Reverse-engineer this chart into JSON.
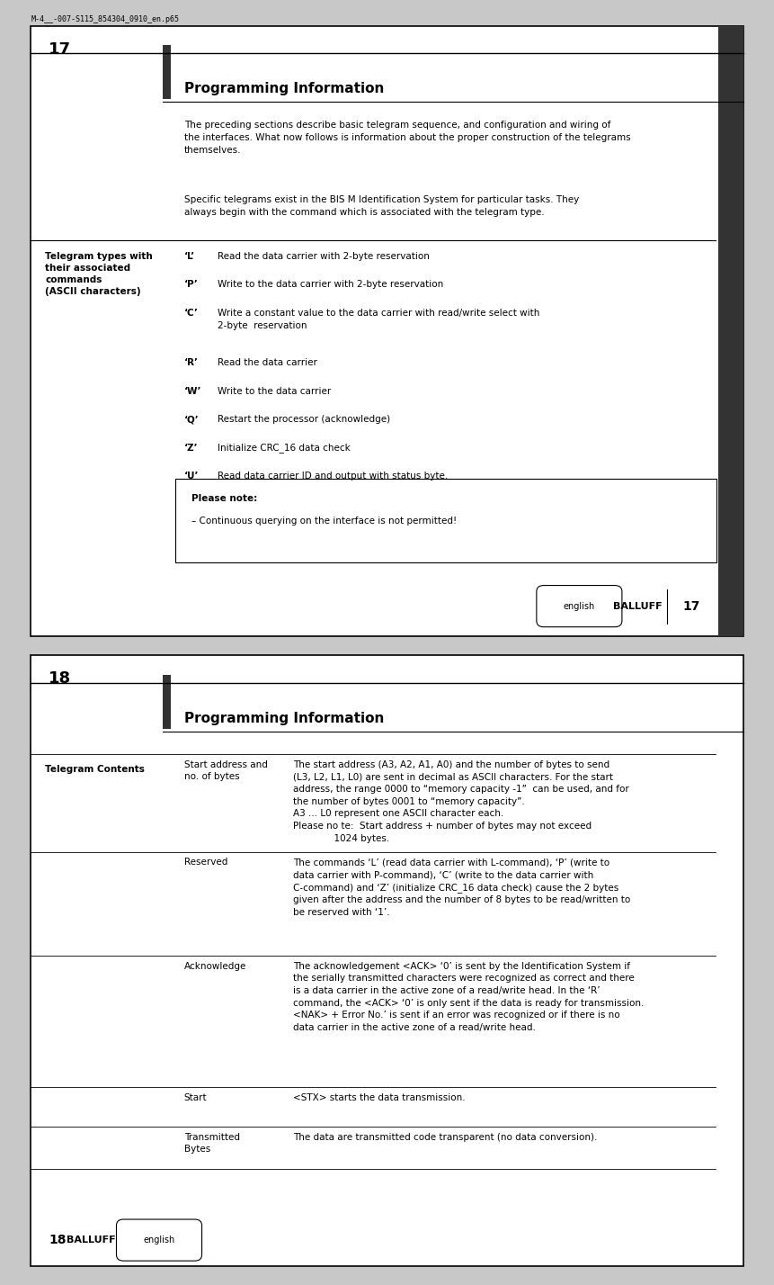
{
  "page_bg": "#ffffff",
  "outer_border_color": "#000000",
  "header_bar_color": "#404040",
  "page1_number": "17",
  "page2_number": "18",
  "file_label": "M-4__-007-S115_854304_0910_en.p65",
  "title": "Programming Information",
  "page1_intro1": "The preceding sections describe basic telegram sequence, and configuration and wiring of\nthe interfaces. What now follows is information about the proper construction of the telegrams\nthemselves.",
  "page1_intro2": "Specific telegrams exist in the BIS M Identification System for particular tasks. They\nalways begin with the command which is associated with the telegram type.",
  "sidebar_label": "Telegram types with\ntheir associated\ncommands\n(ASCII characters)",
  "telegram_rows": [
    {
      "cmd": "‘L’",
      "desc": "Read the data carrier with 2-byte reservation"
    },
    {
      "cmd": "‘P’",
      "desc": "Write to the data carrier with 2-byte reservation"
    },
    {
      "cmd": "‘C’",
      "desc": "Write a constant value to the data carrier with read/write select with\n2-byte  reservation"
    },
    {
      "cmd": "‘R’",
      "desc": "Read the data carrier"
    },
    {
      "cmd": "‘W’",
      "desc": "Write to the data carrier"
    },
    {
      "cmd": "‘Q’",
      "desc": "Restart the processor (acknowledge)"
    },
    {
      "cmd": "‘Z’",
      "desc": "Initialize CRC_16 data check"
    },
    {
      "cmd": "‘U’",
      "desc": "Read data carrier ID and output with status byte."
    }
  ],
  "note_title": "Please note:",
  "note_text": "– Continuous querying on the interface is not permitted!",
  "footer_lang": "english",
  "page2_title": "Programming Information",
  "page2_sidebar": "Telegram Contents",
  "page2_table": [
    {
      "col1": "Start address and\nno. of bytes",
      "col2": "The start address (A3, A2, A1, A0) and the number of bytes to send\n(L3, L2, L1, L0) are sent in decimal as ASCII characters. For the start\naddress, the range 0000 to “memory capacity -1”  can be used, and for\nthe number of bytes 0001 to “memory capacity”.\nA3 ... L0 represent one ASCII character each.\nPlease no te:  Start address + number of bytes may not exceed\n              1024 bytes."
    },
    {
      "col1": "Reserved",
      "col2": "The commands ‘L’ (read data carrier with L-command), ‘P’ (write to\ndata carrier with P-command), ‘C’ (write to the data carrier with\nC-command) and ‘Z’ (initialize CRC_16 data check) cause the 2 bytes\ngiven after the address and the number of 8 bytes to be read/written to\nbe reserved with ‘1’."
    },
    {
      "col1": "Acknowledge",
      "col2": "The acknowledgement <ACK> ‘0’ is sent by the Identification System if\nthe serially transmitted characters were recognized as correct and there\nis a data carrier in the active zone of a read/write head. In the ‘R’\ncommand, the <ACK> ‘0’ is only sent if the data is ready for transmission.\n<NAK> + Error No.’ is sent if an error was recognized or if there is no\ndata carrier in the active zone of a read/write head."
    },
    {
      "col1": "Start",
      "col2": "<STX> starts the data transmission."
    },
    {
      "col1": "Transmitted\nBytes",
      "col2": "The data are transmitted code transparent (no data conversion)."
    }
  ],
  "footer2_lang": "english"
}
